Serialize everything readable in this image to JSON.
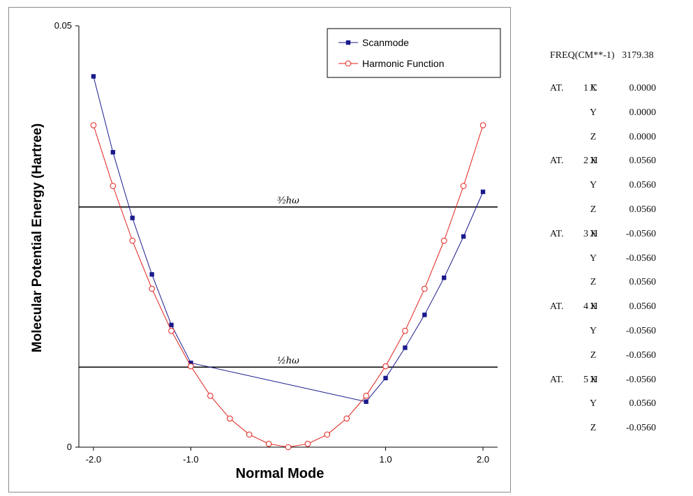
{
  "chart_data": {
    "type": "line",
    "title": "",
    "xlabel": "Normal Mode",
    "ylabel": "Molecular Potential Energy (Hartree)",
    "xlim": [
      -2.15,
      2.15
    ],
    "ylim": [
      0,
      0.05
    ],
    "x_ticks": [
      "-2.0",
      "-1.0",
      "1.0",
      "2.0"
    ],
    "x_tick_values": [
      -2.0,
      -1.0,
      1.0,
      2.0
    ],
    "y_ticks": [
      "0",
      "0.05"
    ],
    "y_tick_values": [
      0,
      0.05
    ],
    "grid": false,
    "legend_position": "top-right",
    "series": [
      {
        "name": "Scanmode",
        "color": "#1a1a8c",
        "marker": "filled-square",
        "x": [
          -2.0,
          -1.8,
          -1.6,
          -1.4,
          -1.2,
          -1.0,
          0.8,
          1.0,
          1.2,
          1.4,
          1.6,
          1.8,
          2.0
        ],
        "y": [
          0.044,
          0.035,
          0.0272,
          0.0205,
          0.0145,
          0.01,
          0.0054,
          0.0082,
          0.0118,
          0.0157,
          0.0201,
          0.025,
          0.0303
        ]
      },
      {
        "name": "Harmonic Function",
        "color": "#e0201a",
        "marker": "open-circle",
        "x": [
          -2.0,
          -1.8,
          -1.6,
          -1.4,
          -1.2,
          -1.0,
          -0.8,
          -0.6,
          -0.4,
          -0.2,
          0.0,
          0.2,
          0.4,
          0.6,
          0.8,
          1.0,
          1.2,
          1.4,
          1.6,
          1.8,
          2.0
        ],
        "y": [
          0.0382,
          0.031,
          0.0245,
          0.0188,
          0.0138,
          0.0096,
          0.0061,
          0.0034,
          0.0015,
          0.0004,
          0.0,
          0.0004,
          0.0015,
          0.0034,
          0.0061,
          0.0096,
          0.0138,
          0.0188,
          0.0245,
          0.031,
          0.0382
        ]
      }
    ],
    "reference_lines": [
      {
        "label": "³⁄₂hω",
        "y": 0.0285
      },
      {
        "label": "½hω",
        "y": 0.0095
      }
    ]
  },
  "freq_panel": {
    "freq_label": "FREQ(CM**-1)",
    "freq_value": "3179.38",
    "rows": [
      {
        "at": "AT.",
        "atom": "1 C",
        "axis": "X",
        "value": "0.0000"
      },
      {
        "at": "",
        "atom": "",
        "axis": "Y",
        "value": "0.0000"
      },
      {
        "at": "",
        "atom": "",
        "axis": "Z",
        "value": "0.0000"
      },
      {
        "at": "AT.",
        "atom": "2 H",
        "axis": "X",
        "value": "0.0560"
      },
      {
        "at": "",
        "atom": "",
        "axis": "Y",
        "value": "0.0560"
      },
      {
        "at": "",
        "atom": "",
        "axis": "Z",
        "value": "0.0560"
      },
      {
        "at": "AT.",
        "atom": "3 H",
        "axis": "X",
        "value": "-0.0560"
      },
      {
        "at": "",
        "atom": "",
        "axis": "Y",
        "value": "-0.0560"
      },
      {
        "at": "",
        "atom": "",
        "axis": "Z",
        "value": "0.0560"
      },
      {
        "at": "AT.",
        "atom": "4 H",
        "axis": "X",
        "value": "0.0560"
      },
      {
        "at": "",
        "atom": "",
        "axis": "Y",
        "value": "-0.0560"
      },
      {
        "at": "",
        "atom": "",
        "axis": "Z",
        "value": "-0.0560"
      },
      {
        "at": "AT.",
        "atom": "5 H",
        "axis": "X",
        "value": "-0.0560"
      },
      {
        "at": "",
        "atom": "",
        "axis": "Y",
        "value": "0.0560"
      },
      {
        "at": "",
        "atom": "",
        "axis": "Z",
        "value": "-0.0560"
      }
    ]
  }
}
